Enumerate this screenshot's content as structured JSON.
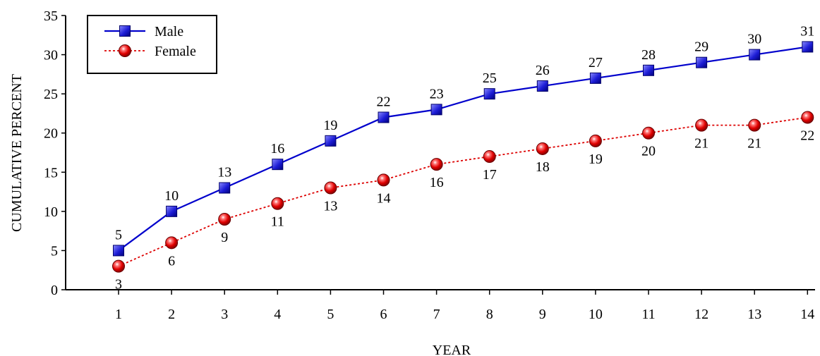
{
  "chart_data": {
    "type": "line",
    "title": "",
    "xlabel": "YEAR",
    "ylabel": "CUMULATIVE PERCENT",
    "x": [
      1,
      2,
      3,
      4,
      5,
      6,
      7,
      8,
      9,
      10,
      11,
      12,
      13,
      14
    ],
    "x_tick_labels": [
      "1",
      "2",
      "3",
      "4",
      "5",
      "6",
      "7",
      "8",
      "9",
      "10",
      "11",
      "12",
      "13",
      "14"
    ],
    "ylim": [
      0,
      35
    ],
    "y_ticks": [
      0,
      5,
      10,
      15,
      20,
      25,
      30,
      35
    ],
    "y_tick_labels": [
      "0",
      "5",
      "10",
      "15",
      "20",
      "25",
      "30",
      "35"
    ],
    "grid": false,
    "legend": {
      "position": "top-left",
      "boxed": true
    },
    "series": [
      {
        "name": "Male",
        "color": "#0000cc",
        "line_style": "solid",
        "marker": "square",
        "label_position": "above",
        "values": [
          5,
          10,
          13,
          16,
          19,
          22,
          23,
          25,
          26,
          27,
          28,
          29,
          30,
          31
        ],
        "value_labels": [
          "5",
          "10",
          "13",
          "16",
          "19",
          "22",
          "23",
          "25",
          "26",
          "27",
          "28",
          "29",
          "30",
          "31"
        ]
      },
      {
        "name": "Female",
        "color": "#dd0000",
        "line_style": "dotted",
        "marker": "circle",
        "label_position": "below",
        "values": [
          3,
          6,
          9,
          11,
          13,
          14,
          16,
          17,
          18,
          19,
          20,
          21,
          21,
          22
        ],
        "value_labels": [
          "3",
          "6",
          "9",
          "11",
          "13",
          "14",
          "16",
          "17",
          "18",
          "19",
          "20",
          "21",
          "21",
          "22"
        ]
      }
    ]
  }
}
